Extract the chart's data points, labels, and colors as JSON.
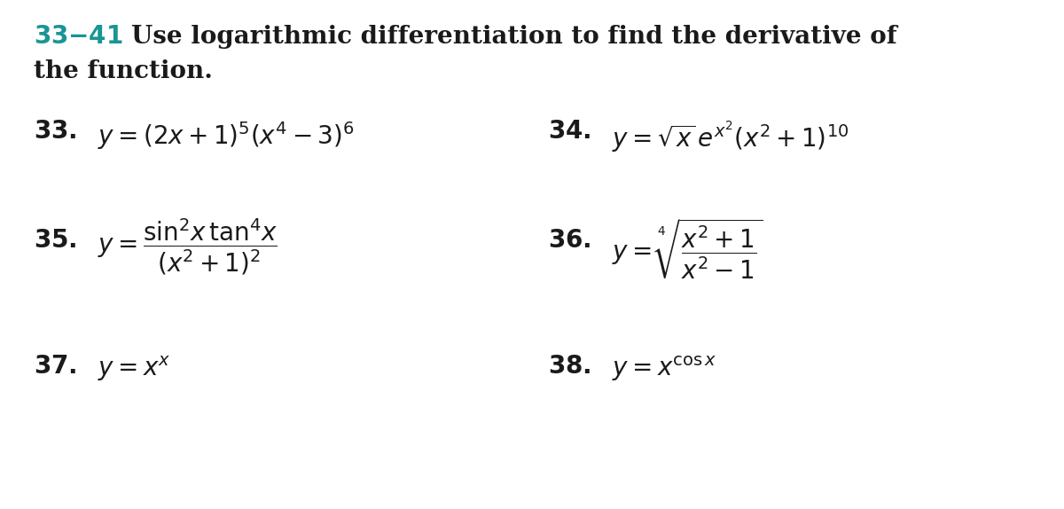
{
  "background_color": "#ffffff",
  "teal_color": "#1a9494",
  "black_color": "#1a1a1a",
  "figwidth": 12.0,
  "figheight": 5.74,
  "dpi": 100
}
